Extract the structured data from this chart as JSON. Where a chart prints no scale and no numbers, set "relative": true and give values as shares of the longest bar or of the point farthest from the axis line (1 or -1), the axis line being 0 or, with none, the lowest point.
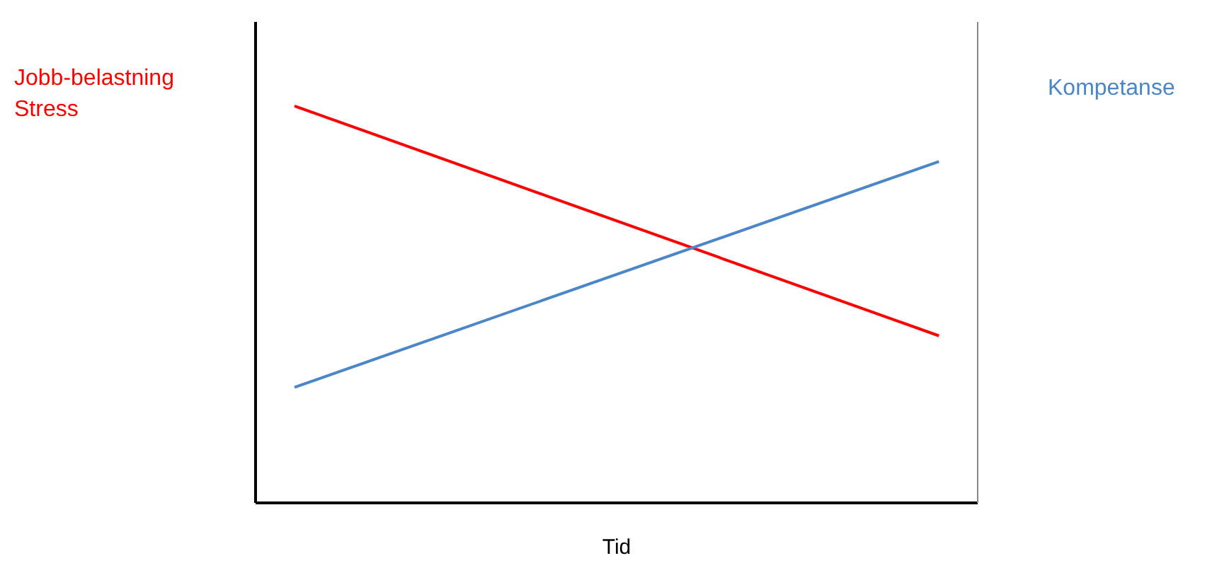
{
  "chart_data": {
    "type": "line",
    "relative": true,
    "xlabel": "Tid",
    "categories": [
      null,
      null
    ],
    "series": [
      {
        "name": "Jobb-belastning\nStress",
        "color": "#ff0000",
        "values": [
          1,
          0.42
        ]
      },
      {
        "name": "Kompetanse",
        "color": "#4a86c8",
        "values": [
          0.29,
          0.86
        ]
      }
    ]
  }
}
